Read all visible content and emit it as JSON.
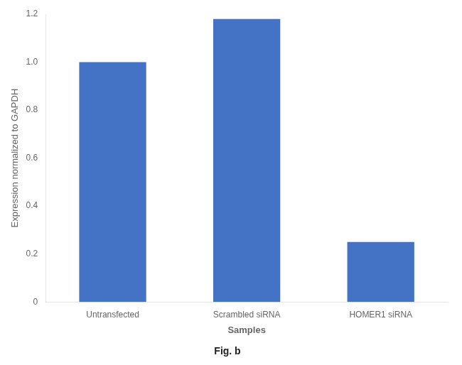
{
  "chart_data": {
    "type": "bar",
    "categories": [
      "Untransfected",
      "Scrambled siRNA",
      "HOMER1 siRNA"
    ],
    "values": [
      1.0,
      1.18,
      0.25
    ],
    "color": "#4472c4",
    "xlabel": "Samples",
    "ylabel": "Expression normalized to GAPDH",
    "ylim": [
      0,
      1.2
    ],
    "yticks": [
      0,
      0.2,
      0.4,
      0.6,
      0.8,
      {
        "value": 1.0,
        "label": "1.0"
      },
      1.2
    ],
    "grid": false,
    "annotations": [
      "Fig. b"
    ]
  }
}
